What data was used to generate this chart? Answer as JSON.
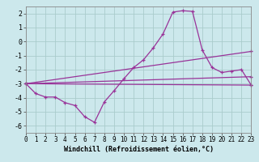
{
  "background_color": "#cce8ec",
  "grid_color": "#aacccc",
  "line_color": "#993399",
  "xlabel": "Windchill (Refroidissement éolien,°C)",
  "xlim": [
    0,
    23
  ],
  "ylim": [
    -6.5,
    2.5
  ],
  "xticks": [
    0,
    1,
    2,
    3,
    4,
    5,
    6,
    7,
    8,
    9,
    10,
    11,
    12,
    13,
    14,
    15,
    16,
    17,
    18,
    19,
    20,
    21,
    22,
    23
  ],
  "yticks": [
    -6,
    -5,
    -4,
    -3,
    -2,
    -1,
    0,
    1,
    2
  ],
  "curve_x": [
    0,
    1,
    2,
    3,
    4,
    5,
    6,
    7,
    8,
    9,
    10,
    11,
    12,
    13,
    14,
    15,
    16,
    17,
    18,
    19,
    20,
    21,
    22,
    23
  ],
  "curve_y": [
    -3.0,
    -3.7,
    -3.95,
    -3.95,
    -4.35,
    -4.55,
    -5.35,
    -5.75,
    -4.3,
    -3.5,
    -2.65,
    -1.85,
    -1.3,
    -0.45,
    0.55,
    2.1,
    2.2,
    2.15,
    -0.6,
    -1.85,
    -2.2,
    -2.1,
    -2.0,
    -3.1
  ],
  "line1_x": [
    0,
    23
  ],
  "line1_y": [
    -3.0,
    -0.7
  ],
  "line2_x": [
    0,
    23
  ],
  "line2_y": [
    -3.0,
    -2.5
  ],
  "line3_x": [
    0,
    23
  ],
  "line3_y": [
    -3.0,
    -3.1
  ]
}
